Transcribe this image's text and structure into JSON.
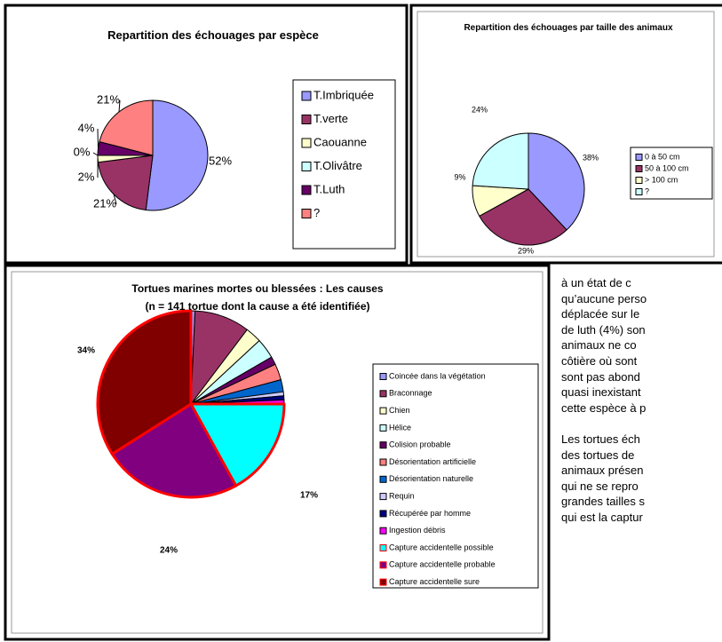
{
  "chart_data": [
    {
      "type": "pie",
      "title": "Repartition des échouages par espèce",
      "categories": [
        "T.Imbriquée",
        "T.verte",
        "Caouanne",
        "T.Olivâtre",
        "T.Luth",
        "?"
      ],
      "values": [
        52,
        21,
        2,
        0,
        4,
        21
      ],
      "value_labels": [
        "52%",
        "21%",
        "2%",
        "0%",
        "4%",
        "21%"
      ],
      "colors": [
        "#9999ff",
        "#993366",
        "#ffffcc",
        "#ccffff",
        "#660066",
        "#ff8080"
      ]
    },
    {
      "type": "pie",
      "title": "Repartition des échouages par taille des animaux",
      "categories": [
        "0 à 50 cm",
        "50 à 100 cm",
        "> 100 cm",
        "?"
      ],
      "values": [
        38,
        29,
        9,
        24
      ],
      "value_labels": [
        "38%",
        "29%",
        "9%",
        "24%"
      ],
      "colors": [
        "#9999ff",
        "#993366",
        "#ffffcc",
        "#ccffff"
      ]
    },
    {
      "type": "pie",
      "title": "Tortues marines mortes ou blessées : Les causes",
      "subtitle": "(n = 141 tortue dont la cause a été identifiée)",
      "categories": [
        "Coincée dans la végétation",
        "Braconnage",
        "Chien",
        "Hélice",
        "Colision probable",
        "Désorientation artificielle",
        "Désorientation naturelle",
        "Requin",
        "Récupérée par homme",
        "Ingestion débris",
        "Capture accidentelle possible",
        "Capture accidentelle probable",
        "Capture accidentelle sure"
      ],
      "values": [
        0.7,
        9.6,
        2.8,
        3.5,
        1.4,
        2.8,
        2.1,
        0.7,
        0.7,
        0.7,
        17,
        24,
        34
      ],
      "value_labels": [
        null,
        null,
        null,
        null,
        null,
        null,
        null,
        null,
        null,
        null,
        "17%",
        "24%",
        "34%"
      ],
      "colors": [
        "#9999ff",
        "#993366",
        "#ffffcc",
        "#ccffff",
        "#660066",
        "#ff8080",
        "#0066cc",
        "#ccccff",
        "#000080",
        "#ff00ff",
        "#00ffff",
        "#800080",
        "#800000"
      ],
      "edgecolors": [
        "#000000",
        "#000000",
        "#000000",
        "#000000",
        "#000000",
        "#000000",
        "#000000",
        "#000000",
        "#000000",
        "#000000",
        "#ff0000",
        "#ff0000",
        "#ff0000"
      ]
    }
  ],
  "text": {
    "paragraphs": [
      [
        "à un état de c",
        "qu’aucune perso",
        "déplacée sur le",
        "de luth (4%) son",
        "animaux ne co",
        "côtière où sont",
        "sont pas abond",
        "quasi inexistant",
        "cette espèce à p"
      ],
      [
        "Les tortues éch",
        "des tortues de",
        "animaux présen",
        "qui ne se repro",
        "grandes tailles s",
        "qui est la captur"
      ]
    ]
  }
}
